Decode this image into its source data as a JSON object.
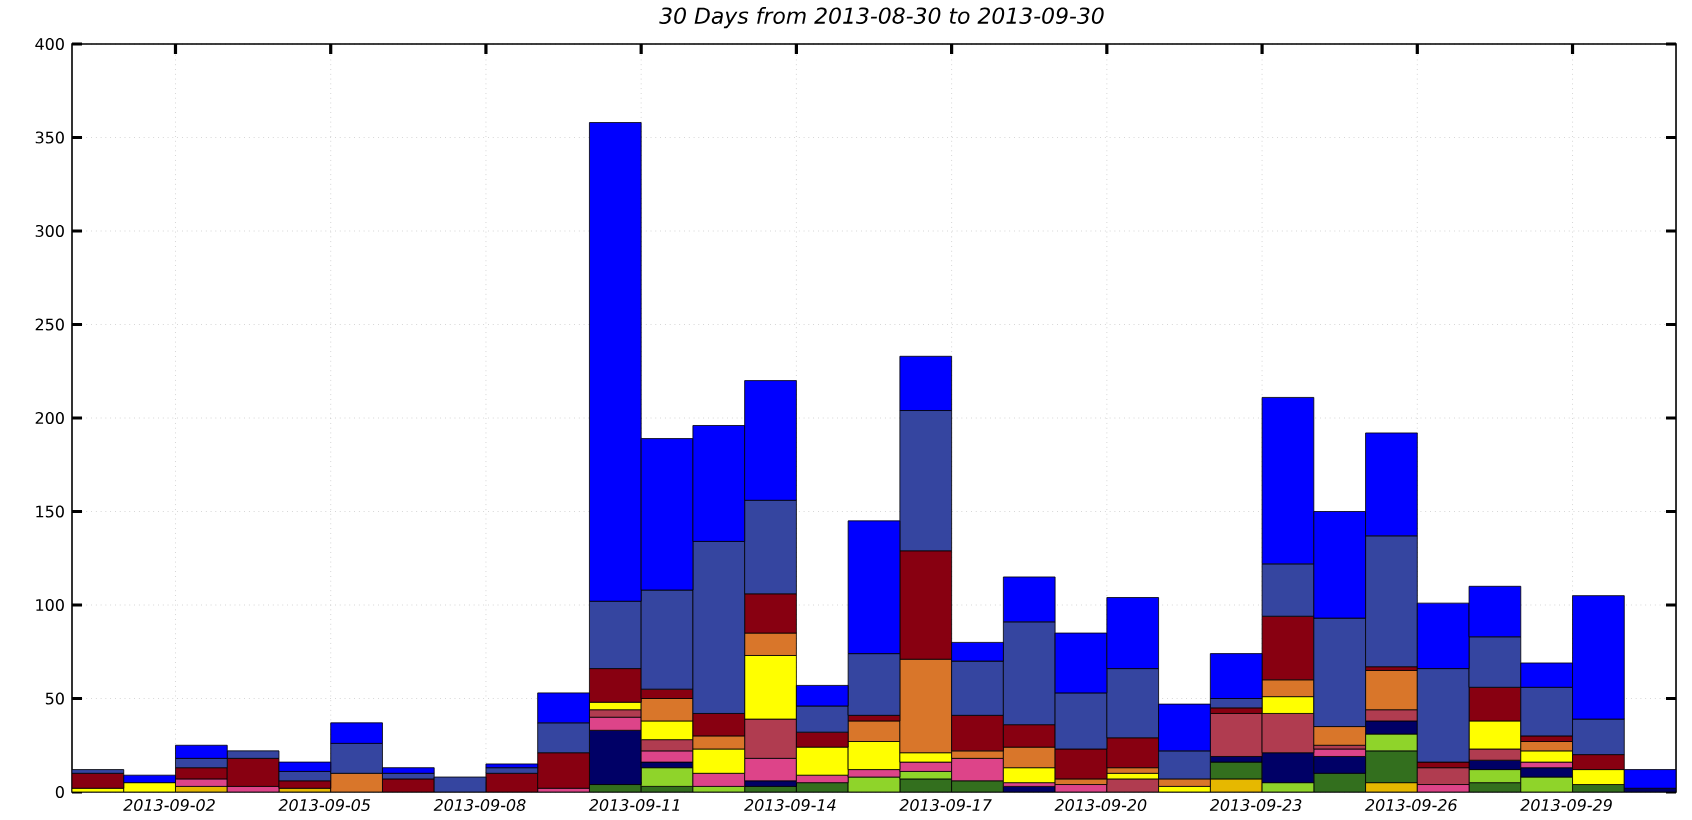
{
  "chart_data": {
    "type": "bar",
    "stacked": true,
    "title": "30 Days from 2013-08-30 to 2013-09-30",
    "x": [
      "2013-08-31T12:00",
      "2013-09-01T12:00",
      "2013-09-02T12:00",
      "2013-09-03T12:00",
      "2013-09-04T12:00",
      "2013-09-05T12:00",
      "2013-09-06T12:00",
      "2013-09-07T12:00",
      "2013-09-08T12:00",
      "2013-09-09T12:00",
      "2013-09-10T12:00",
      "2013-09-11T12:00",
      "2013-09-12T12:00",
      "2013-09-13T12:00",
      "2013-09-14T12:00",
      "2013-09-15T12:00",
      "2013-09-16T12:00",
      "2013-09-17T12:00",
      "2013-09-18T12:00",
      "2013-09-19T12:00",
      "2013-09-20T12:00",
      "2013-09-21T12:00",
      "2013-09-22T12:00",
      "2013-09-23T12:00",
      "2013-09-24T12:00",
      "2013-09-25T12:00",
      "2013-09-26T12:00",
      "2013-09-27T12:00",
      "2013-09-28T12:00",
      "2013-09-29T12:00",
      "2013-09-30T12:00"
    ],
    "series": [
      {
        "color": "#e6b800",
        "values": [
          null,
          null,
          3,
          null,
          2,
          null,
          null,
          null,
          null,
          null,
          null,
          null,
          null,
          null,
          null,
          null,
          null,
          null,
          null,
          null,
          null,
          null,
          7,
          null,
          null,
          5,
          null,
          null,
          null,
          null,
          null
        ]
      },
      {
        "color": "#336f1e",
        "values": [
          null,
          null,
          null,
          null,
          null,
          null,
          null,
          null,
          null,
          null,
          4,
          3,
          null,
          3,
          5,
          null,
          7,
          6,
          null,
          null,
          null,
          null,
          9,
          null,
          10,
          17,
          null,
          5,
          null,
          4,
          null
        ]
      },
      {
        "color": "#8fd42a",
        "values": [
          null,
          null,
          null,
          null,
          null,
          null,
          null,
          null,
          null,
          null,
          null,
          10,
          3,
          null,
          null,
          8,
          4,
          null,
          null,
          null,
          null,
          null,
          null,
          5,
          null,
          9,
          null,
          7,
          8,
          null,
          null
        ]
      },
      {
        "color": "#000066",
        "values": [
          null,
          null,
          null,
          null,
          null,
          null,
          null,
          null,
          null,
          null,
          29,
          3,
          null,
          3,
          null,
          null,
          null,
          null,
          3,
          null,
          null,
          null,
          3,
          16,
          9,
          7,
          null,
          5,
          5,
          null,
          2
        ]
      },
      {
        "color": "#dd4489",
        "values": [
          null,
          null,
          4,
          3,
          null,
          null,
          null,
          null,
          null,
          2,
          7,
          6,
          7,
          12,
          4,
          4,
          5,
          12,
          2,
          4,
          null,
          null,
          null,
          null,
          4,
          null,
          4,
          null,
          3,
          null,
          null
        ]
      },
      {
        "color": "#b03c50",
        "values": [
          null,
          null,
          null,
          null,
          null,
          null,
          null,
          null,
          null,
          null,
          4,
          6,
          null,
          21,
          null,
          null,
          null,
          null,
          null,
          null,
          7,
          null,
          23,
          21,
          2,
          6,
          9,
          6,
          null,
          null,
          null
        ]
      },
      {
        "color": "#ffff00",
        "values": [
          2,
          5,
          null,
          null,
          null,
          null,
          null,
          null,
          null,
          null,
          4,
          10,
          13,
          34,
          15,
          15,
          5,
          null,
          8,
          null,
          3,
          3,
          null,
          9,
          null,
          null,
          null,
          15,
          6,
          8,
          null
        ]
      },
      {
        "color": "#d9762a",
        "values": [
          null,
          null,
          null,
          null,
          null,
          10,
          null,
          null,
          null,
          null,
          null,
          12,
          7,
          12,
          null,
          11,
          50,
          4,
          11,
          3,
          3,
          4,
          null,
          9,
          10,
          21,
          null,
          null,
          5,
          null,
          null
        ]
      },
      {
        "color": "#880011",
        "values": [
          8,
          null,
          6,
          15,
          4,
          null,
          7,
          null,
          10,
          19,
          18,
          5,
          12,
          21,
          8,
          3,
          58,
          19,
          12,
          16,
          16,
          null,
          3,
          34,
          null,
          2,
          3,
          18,
          3,
          8,
          null
        ]
      },
      {
        "color": "#3545a0",
        "values": [
          2,
          null,
          5,
          4,
          5,
          16,
          3,
          8,
          3,
          16,
          36,
          53,
          92,
          50,
          14,
          33,
          75,
          29,
          55,
          30,
          37,
          15,
          5,
          28,
          58,
          70,
          50,
          27,
          26,
          19,
          null
        ]
      },
      {
        "color": "#0000ff",
        "values": [
          null,
          4,
          7,
          null,
          5,
          11,
          3,
          null,
          2,
          16,
          256,
          81,
          62,
          64,
          11,
          71,
          29,
          10,
          24,
          32,
          38,
          25,
          24,
          89,
          57,
          55,
          35,
          27,
          13,
          66,
          10
        ]
      }
    ],
    "xlim": [
      "2013-08-31",
      "2013-10-01"
    ],
    "xticks": [
      "2013-09-02",
      "2013-09-05",
      "2013-09-08",
      "2013-09-11",
      "2013-09-14",
      "2013-09-17",
      "2013-09-20",
      "2013-09-23",
      "2013-09-26",
      "2013-09-29"
    ],
    "ylim": [
      0,
      400
    ],
    "yticks": [
      0,
      50,
      100,
      150,
      200,
      250,
      300,
      350,
      400
    ],
    "grid": true
  }
}
